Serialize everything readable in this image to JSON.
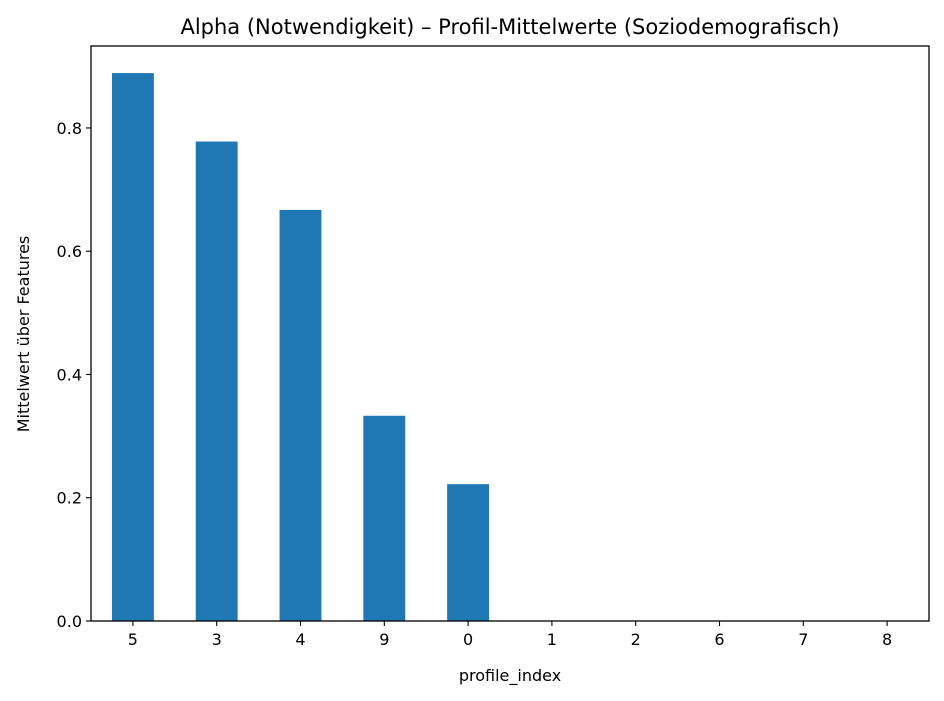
{
  "chart_data": {
    "type": "bar",
    "title": "Alpha (Notwendigkeit) – Profil-Mittelwerte (Soziodemografisch)",
    "xlabel": "profile_index",
    "ylabel": "Mittelwert über Features",
    "categories": [
      "5",
      "3",
      "4",
      "9",
      "0",
      "1",
      "2",
      "6",
      "7",
      "8"
    ],
    "values": [
      0.889,
      0.778,
      0.667,
      0.333,
      0.222,
      0.0,
      0.0,
      0.0,
      0.0,
      0.0
    ],
    "ylim": [
      0,
      0.933
    ],
    "yticks": [
      "0.0",
      "0.2",
      "0.4",
      "0.6",
      "0.8"
    ],
    "bar_color": "#1f77b4",
    "grid": false,
    "legend": "none"
  }
}
